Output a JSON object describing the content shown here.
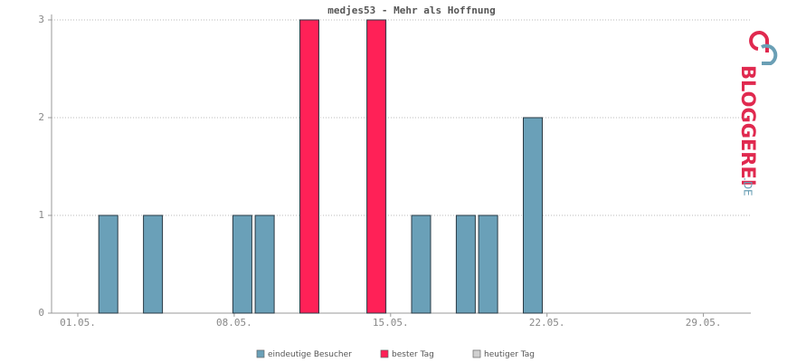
{
  "chart_data": {
    "type": "bar",
    "title": "medjes53 - Mehr als Hoffnung",
    "categories": [
      "01.05.",
      null,
      null,
      null,
      null,
      null,
      null,
      "08.05.",
      null,
      null,
      null,
      null,
      null,
      null,
      "15.05.",
      null,
      null,
      null,
      null,
      null,
      null,
      "22.05.",
      null,
      null,
      null,
      null,
      null,
      null,
      "29.05.",
      null
    ],
    "series": [
      {
        "name": "eindeutige Besucher",
        "color": "#6aa0b8",
        "values": [
          0,
          1,
          0,
          1,
          0,
          0,
          0,
          1,
          1,
          0,
          null,
          0,
          0,
          null,
          0,
          1,
          0,
          1,
          1,
          0,
          2,
          0,
          0,
          0,
          0,
          0,
          0,
          0,
          0,
          0
        ]
      },
      {
        "name": "bester Tag",
        "color": "#ff2157",
        "values": [
          null,
          null,
          null,
          null,
          null,
          null,
          null,
          null,
          null,
          null,
          3,
          null,
          null,
          3,
          null,
          null,
          null,
          null,
          null,
          null,
          null,
          null,
          null,
          null,
          null,
          null,
          null,
          null,
          null,
          null
        ]
      },
      {
        "name": "heutiger Tag",
        "color": "#d0d0d0",
        "values": [
          null,
          null,
          null,
          null,
          null,
          null,
          null,
          null,
          null,
          null,
          null,
          null,
          null,
          null,
          null,
          null,
          null,
          null,
          null,
          null,
          null,
          null,
          null,
          null,
          null,
          null,
          null,
          null,
          null,
          null
        ]
      }
    ],
    "ylim": [
      0,
      3
    ],
    "yticks": [
      0,
      1,
      2,
      3
    ],
    "grid": true,
    "watermark": {
      "brand": "BLOGGEREI",
      "tld": ".DE"
    }
  }
}
